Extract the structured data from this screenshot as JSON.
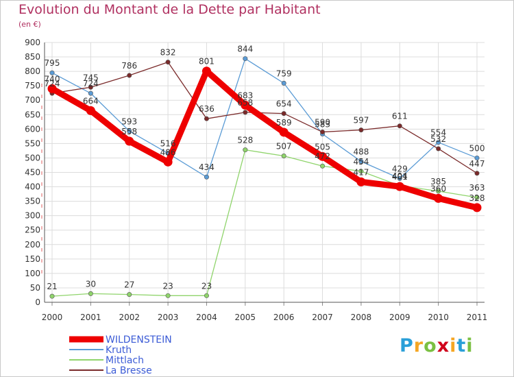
{
  "chart_data": {
    "type": "line",
    "title": "Evolution du Montant de la Dette par Habitant",
    "subtitle": "(en €)",
    "xlabel": "",
    "ylabel": "",
    "x": [
      "2000",
      "2001",
      "2002",
      "2003",
      "2004",
      "2005",
      "2006",
      "2007",
      "2008",
      "2009",
      "2010",
      "2011"
    ],
    "ylim": [
      0,
      900
    ],
    "yticks": [
      "0",
      "50",
      "100",
      "150",
      "200",
      "250",
      "300",
      "350",
      "400",
      "450",
      "500",
      "550",
      "600",
      "650",
      "700",
      "750",
      "800",
      "850",
      "900"
    ],
    "grid": true,
    "legend_position": "bottom-left",
    "series": [
      {
        "name": "WILDENSTEIN",
        "color": "#ee0000",
        "values": [
          740,
          664,
          558,
          486,
          801,
          683,
          589,
          505,
          417,
          401,
          360,
          328
        ]
      },
      {
        "name": "Kruth",
        "color": "#5a9bd5",
        "values": [
          795,
          724,
          593,
          516,
          434,
          844,
          759,
          583,
          488,
          429,
          554,
          500
        ]
      },
      {
        "name": "Mittlach",
        "color": "#8fd46b",
        "values": [
          21,
          30,
          27,
          23,
          23,
          528,
          507,
          472,
          454,
          404,
          385,
          363
        ]
      },
      {
        "name": "La Bresse",
        "color": "#7a2a2a",
        "values": [
          724,
          745,
          786,
          832,
          636,
          658,
          654,
          590,
          597,
          611,
          532,
          447
        ]
      }
    ]
  },
  "logo": {
    "letters": [
      "P",
      "r",
      "o",
      "x",
      "i",
      "t",
      "i"
    ],
    "colors": [
      "#2a9fd8",
      "#f5a623",
      "#7bc043",
      "#d0021b",
      "#f5a623",
      "#2a9fd8",
      "#7bc043"
    ]
  }
}
